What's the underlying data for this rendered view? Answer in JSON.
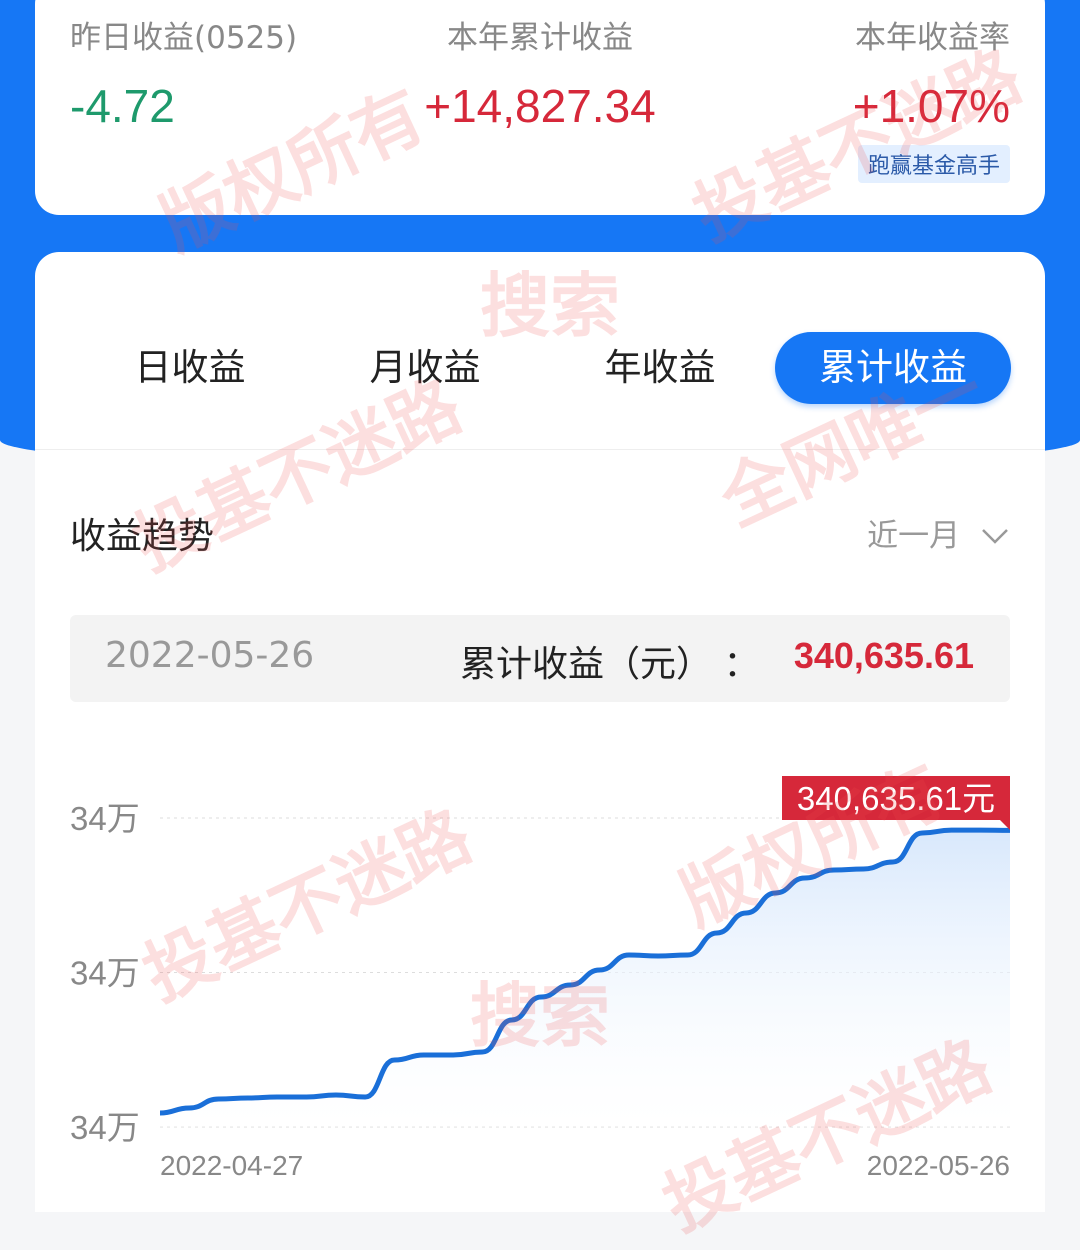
{
  "summary": {
    "yesterday": {
      "label": "昨日收益(0525)",
      "value": "-4.72"
    },
    "year_total": {
      "label": "本年累计收益",
      "value": "+14,827.34"
    },
    "year_rate": {
      "label": "本年收益率",
      "value": "+1.07%"
    },
    "badge": "跑赢基金高手"
  },
  "tabs": [
    {
      "label": "日收益",
      "active": false
    },
    {
      "label": "月收益",
      "active": false
    },
    {
      "label": "年收益",
      "active": false
    },
    {
      "label": "累计收益",
      "active": true
    }
  ],
  "trend": {
    "title": "收益趋势",
    "range": "近一月",
    "selected_date": "2022-05-26",
    "selected_label": "累计收益（元）",
    "selected_sep": "：",
    "selected_value": "340,635.61"
  },
  "colors": {
    "primary": "#1677f5",
    "up": "#d6283a",
    "down": "#1e9a6c"
  },
  "watermarks": [
    "版权所有",
    "投基不迷路",
    "搜索",
    "全网唯一"
  ],
  "chart_data": {
    "type": "area",
    "x_start": "2022-04-27",
    "x_end": "2022-05-26",
    "x_tick_labels": [
      "2022-04-27",
      "2022-05-26"
    ],
    "y_tick_labels": [
      "34万",
      "34万",
      "34万"
    ],
    "y_ticks": [
      334300,
      337600,
      340900
    ],
    "ylim": [
      334300,
      340900
    ],
    "grid": true,
    "last_label": "340,635.61元",
    "values": [
      334599,
      334706,
      334898,
      334919,
      334941,
      334941,
      334983,
      334941,
      335731,
      335838,
      335838,
      335902,
      336585,
      337077,
      337333,
      337653,
      337974,
      337952,
      337974,
      338444,
      338871,
      339298,
      339618,
      339789,
      339811,
      339960,
      340580,
      340640,
      340640,
      340635.61
    ]
  }
}
